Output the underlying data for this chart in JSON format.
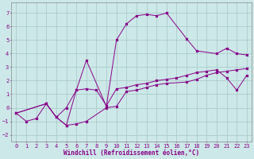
{
  "xlabel": "Windchill (Refroidissement éolien,°C)",
  "background_color": "#cde8e8",
  "grid_color": "#aacccc",
  "line_color": "#880088",
  "xlim": [
    -0.5,
    23.5
  ],
  "ylim": [
    -2.5,
    7.8
  ],
  "xticks": [
    0,
    1,
    2,
    3,
    4,
    5,
    6,
    7,
    8,
    9,
    10,
    11,
    12,
    13,
    14,
    15,
    16,
    17,
    18,
    19,
    20,
    21,
    22,
    23
  ],
  "yticks": [
    -2,
    -1,
    0,
    1,
    2,
    3,
    4,
    5,
    6,
    7
  ],
  "series1_x": [
    0,
    1,
    2,
    3,
    4,
    5,
    6,
    7,
    8,
    9,
    10,
    11,
    12,
    13,
    14,
    15,
    16,
    17,
    18,
    19,
    20,
    21,
    22,
    23
  ],
  "series1_y": [
    -0.4,
    -1.0,
    -0.8,
    0.3,
    -0.7,
    0.0,
    1.3,
    1.4,
    1.3,
    0.15,
    1.4,
    1.5,
    1.7,
    1.8,
    2.0,
    2.1,
    2.2,
    2.4,
    2.6,
    2.7,
    2.8,
    2.2,
    1.3,
    2.4
  ],
  "series2_x": [
    0,
    3,
    4,
    5,
    6,
    7,
    9,
    10,
    11,
    12,
    13,
    14,
    15,
    17,
    18,
    19,
    20,
    21,
    22,
    23
  ],
  "series2_y": [
    -0.4,
    0.3,
    -0.7,
    -1.3,
    -1.2,
    -1.0,
    0.0,
    0.1,
    1.2,
    1.3,
    1.5,
    1.7,
    1.8,
    1.9,
    2.1,
    2.4,
    2.6,
    2.7,
    2.8,
    2.9
  ],
  "series3_x": [
    0,
    3,
    4,
    5,
    6,
    7,
    9,
    10,
    11,
    12,
    13,
    14,
    15,
    17,
    18,
    20,
    21,
    22,
    23
  ],
  "series3_y": [
    -0.4,
    0.3,
    -0.7,
    -1.3,
    1.3,
    3.5,
    0.1,
    5.0,
    6.2,
    6.8,
    6.9,
    6.8,
    7.0,
    5.1,
    4.2,
    4.0,
    4.4,
    4.0,
    3.9
  ]
}
